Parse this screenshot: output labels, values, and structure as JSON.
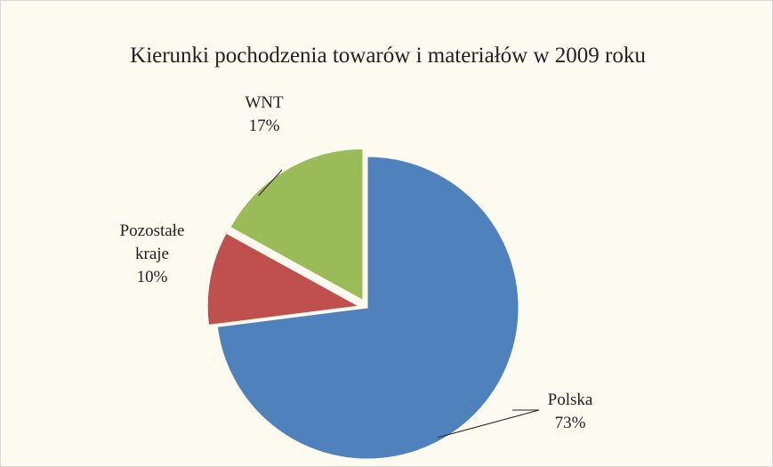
{
  "chart_data": {
    "type": "pie",
    "title": "Kierunki pochodzenia towarów i materiałów w 2009 roku",
    "categories": [
      "Polska",
      "Pozostałe kraje",
      "WNT"
    ],
    "values": [
      73,
      10,
      17
    ],
    "value_labels": [
      "73%",
      "10%",
      "17%"
    ],
    "colors": [
      "#4f81bd",
      "#c0504d",
      "#9bbb59"
    ],
    "exploded": [
      false,
      true,
      true
    ]
  }
}
